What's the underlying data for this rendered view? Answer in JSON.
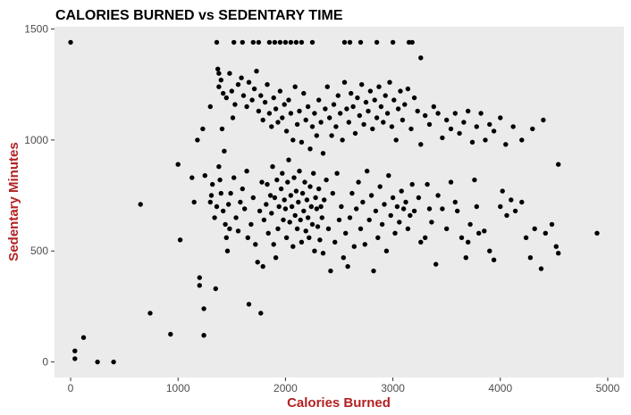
{
  "chart_data": {
    "type": "scatter",
    "title": "CALORIES BURNED vs SEDENTARY TIME",
    "xlabel": "Calories Burned",
    "ylabel": "Sedentary Minutes",
    "xlim": [
      -150,
      5150
    ],
    "ylim": [
      -70,
      1510
    ],
    "x_ticks": [
      0,
      1000,
      2000,
      3000,
      4000,
      5000
    ],
    "y_ticks": [
      0,
      500,
      1000,
      1500
    ],
    "grid": false,
    "colors": {
      "panel": "#ebebeb",
      "point": "#000000",
      "axis_title": "#b22222",
      "tick_label": "#4d4d4d"
    },
    "points": [
      [
        0,
        1440
      ],
      [
        40,
        50
      ],
      [
        40,
        15
      ],
      [
        120,
        110
      ],
      [
        250,
        0
      ],
      [
        400,
        0
      ],
      [
        650,
        710
      ],
      [
        740,
        220
      ],
      [
        930,
        125
      ],
      [
        1000,
        890
      ],
      [
        1020,
        550
      ],
      [
        1130,
        830
      ],
      [
        1150,
        720
      ],
      [
        1180,
        1000
      ],
      [
        1200,
        380
      ],
      [
        1200,
        345
      ],
      [
        1230,
        1050
      ],
      [
        1240,
        240
      ],
      [
        1240,
        120
      ],
      [
        1250,
        840
      ],
      [
        1300,
        720
      ],
      [
        1350,
        330
      ],
      [
        1360,
        1440
      ],
      [
        1370,
        1320
      ],
      [
        1380,
        1300
      ],
      [
        1400,
        1270
      ],
      [
        1410,
        1050
      ],
      [
        1430,
        950
      ],
      [
        1460,
        500
      ],
      [
        1480,
        600
      ],
      [
        1520,
        1440
      ],
      [
        1600,
        1440
      ],
      [
        1700,
        1440
      ],
      [
        1750,
        1440
      ],
      [
        1850,
        1440
      ],
      [
        1900,
        1440
      ],
      [
        1950,
        1440
      ],
      [
        2000,
        1440
      ],
      [
        2050,
        1440
      ],
      [
        2100,
        1440
      ],
      [
        2150,
        1440
      ],
      [
        2250,
        1440
      ],
      [
        2550,
        1440
      ],
      [
        2600,
        1440
      ],
      [
        2700,
        1440
      ],
      [
        2850,
        1440
      ],
      [
        3000,
        1440
      ],
      [
        3150,
        1440
      ],
      [
        3180,
        1440
      ],
      [
        3260,
        1370
      ],
      [
        1300,
        1150
      ],
      [
        1310,
        750
      ],
      [
        1320,
        800
      ],
      [
        1340,
        650
      ],
      [
        1360,
        700
      ],
      [
        1380,
        880
      ],
      [
        1390,
        820
      ],
      [
        1400,
        760
      ],
      [
        1420,
        680
      ],
      [
        1440,
        620
      ],
      [
        1450,
        560
      ],
      [
        1470,
        710
      ],
      [
        1490,
        760
      ],
      [
        1510,
        1100
      ],
      [
        1520,
        830
      ],
      [
        1540,
        650
      ],
      [
        1560,
        590
      ],
      [
        1580,
        720
      ],
      [
        1600,
        780
      ],
      [
        1620,
        690
      ],
      [
        1640,
        860
      ],
      [
        1650,
        560
      ],
      [
        1660,
        260
      ],
      [
        1680,
        620
      ],
      [
        1700,
        740
      ],
      [
        1720,
        530
      ],
      [
        1740,
        450
      ],
      [
        1760,
        680
      ],
      [
        1770,
        220
      ],
      [
        1780,
        810
      ],
      [
        1790,
        430
      ],
      [
        1800,
        640
      ],
      [
        1820,
        710
      ],
      [
        1830,
        800
      ],
      [
        1840,
        580
      ],
      [
        1860,
        750
      ],
      [
        1870,
        670
      ],
      [
        1880,
        880
      ],
      [
        1890,
        530
      ],
      [
        1900,
        740
      ],
      [
        1910,
        470
      ],
      [
        1920,
        820
      ],
      [
        1930,
        600
      ],
      [
        1940,
        700
      ],
      [
        1960,
        780
      ],
      [
        1970,
        850
      ],
      [
        1980,
        640
      ],
      [
        1990,
        730
      ],
      [
        2000,
        690
      ],
      [
        2010,
        560
      ],
      [
        2020,
        810
      ],
      [
        2030,
        910
      ],
      [
        2040,
        630
      ],
      [
        2050,
        750
      ],
      [
        2060,
        700
      ],
      [
        2070,
        520
      ],
      [
        2080,
        830
      ],
      [
        2090,
        660
      ],
      [
        2100,
        770
      ],
      [
        2110,
        600
      ],
      [
        2120,
        720
      ],
      [
        2130,
        860
      ],
      [
        2140,
        640
      ],
      [
        2150,
        540
      ],
      [
        2160,
        760
      ],
      [
        2170,
        680
      ],
      [
        2180,
        810
      ],
      [
        2190,
        590
      ],
      [
        2200,
        730
      ],
      [
        2210,
        650
      ],
      [
        2220,
        560
      ],
      [
        2230,
        790
      ],
      [
        2240,
        700
      ],
      [
        2250,
        620
      ],
      [
        2260,
        850
      ],
      [
        2270,
        500
      ],
      [
        2280,
        740
      ],
      [
        2290,
        690
      ],
      [
        2300,
        610
      ],
      [
        2310,
        780
      ],
      [
        2320,
        550
      ],
      [
        2330,
        700
      ],
      [
        2340,
        650
      ],
      [
        2350,
        490
      ],
      [
        2360,
        730
      ],
      [
        2380,
        820
      ],
      [
        2400,
        600
      ],
      [
        2420,
        410
      ],
      [
        2440,
        760
      ],
      [
        2460,
        540
      ],
      [
        2480,
        850
      ],
      [
        2500,
        640
      ],
      [
        2520,
        700
      ],
      [
        2540,
        470
      ],
      [
        2560,
        580
      ],
      [
        2580,
        430
      ],
      [
        2600,
        650
      ],
      [
        2620,
        760
      ],
      [
        2640,
        520
      ],
      [
        2660,
        690
      ],
      [
        2680,
        810
      ],
      [
        2700,
        600
      ],
      [
        2720,
        720
      ],
      [
        2740,
        530
      ],
      [
        2760,
        860
      ],
      [
        2780,
        640
      ],
      [
        2800,
        750
      ],
      [
        2820,
        410
      ],
      [
        2840,
        680
      ],
      [
        2860,
        560
      ],
      [
        2880,
        790
      ],
      [
        2900,
        620
      ],
      [
        2920,
        710
      ],
      [
        2940,
        500
      ],
      [
        2960,
        840
      ],
      [
        2980,
        660
      ],
      [
        3000,
        740
      ],
      [
        3020,
        580
      ],
      [
        3040,
        700
      ],
      [
        3060,
        630
      ],
      [
        3080,
        770
      ],
      [
        3100,
        690
      ],
      [
        3120,
        720
      ],
      [
        3140,
        600
      ],
      [
        3160,
        660
      ],
      [
        3180,
        800
      ],
      [
        3200,
        680
      ],
      [
        3240,
        740
      ],
      [
        3260,
        540
      ],
      [
        3300,
        560
      ],
      [
        3320,
        800
      ],
      [
        3340,
        690
      ],
      [
        3360,
        630
      ],
      [
        3400,
        440
      ],
      [
        3420,
        750
      ],
      [
        3460,
        690
      ],
      [
        3500,
        600
      ],
      [
        3540,
        810
      ],
      [
        3580,
        720
      ],
      [
        3600,
        680
      ],
      [
        3640,
        560
      ],
      [
        3680,
        470
      ],
      [
        3700,
        540
      ],
      [
        3720,
        620
      ],
      [
        3760,
        820
      ],
      [
        3780,
        700
      ],
      [
        3800,
        580
      ],
      [
        3850,
        590
      ],
      [
        3900,
        500
      ],
      [
        3940,
        460
      ],
      [
        4000,
        700
      ],
      [
        4020,
        770
      ],
      [
        4060,
        660
      ],
      [
        4100,
        730
      ],
      [
        4140,
        680
      ],
      [
        4200,
        720
      ],
      [
        4240,
        560
      ],
      [
        4280,
        470
      ],
      [
        4320,
        600
      ],
      [
        4380,
        420
      ],
      [
        4420,
        580
      ],
      [
        4480,
        620
      ],
      [
        4520,
        520
      ],
      [
        4540,
        490
      ],
      [
        4900,
        580
      ],
      [
        1380,
        1240
      ],
      [
        1420,
        1210
      ],
      [
        1450,
        1190
      ],
      [
        1480,
        1300
      ],
      [
        1500,
        1220
      ],
      [
        1530,
        1160
      ],
      [
        1560,
        1250
      ],
      [
        1590,
        1280
      ],
      [
        1610,
        1200
      ],
      [
        1640,
        1150
      ],
      [
        1660,
        1260
      ],
      [
        1690,
        1180
      ],
      [
        1710,
        1230
      ],
      [
        1730,
        1310
      ],
      [
        1750,
        1130
      ],
      [
        1770,
        1200
      ],
      [
        1790,
        1090
      ],
      [
        1810,
        1170
      ],
      [
        1830,
        1250
      ],
      [
        1850,
        1120
      ],
      [
        1870,
        1060
      ],
      [
        1890,
        1190
      ],
      [
        1910,
        1140
      ],
      [
        1930,
        1080
      ],
      [
        1950,
        1220
      ],
      [
        1970,
        1100
      ],
      [
        1990,
        1160
      ],
      [
        2010,
        1040
      ],
      [
        2030,
        1180
      ],
      [
        2050,
        1120
      ],
      [
        2070,
        1000
      ],
      [
        2090,
        1240
      ],
      [
        2110,
        1070
      ],
      [
        2130,
        1130
      ],
      [
        2150,
        990
      ],
      [
        2170,
        1210
      ],
      [
        2190,
        1090
      ],
      [
        2210,
        1150
      ],
      [
        2230,
        960
      ],
      [
        2250,
        1060
      ],
      [
        2270,
        1120
      ],
      [
        2290,
        1020
      ],
      [
        2310,
        1180
      ],
      [
        2330,
        1080
      ],
      [
        2350,
        940
      ],
      [
        2370,
        1140
      ],
      [
        2390,
        1240
      ],
      [
        2410,
        1100
      ],
      [
        2430,
        1020
      ],
      [
        2450,
        1160
      ],
      [
        2470,
        1060
      ],
      [
        2490,
        1200
      ],
      [
        2510,
        1120
      ],
      [
        2530,
        1000
      ],
      [
        2550,
        1260
      ],
      [
        2570,
        1140
      ],
      [
        2590,
        1080
      ],
      [
        2610,
        1210
      ],
      [
        2630,
        1150
      ],
      [
        2650,
        1030
      ],
      [
        2670,
        1190
      ],
      [
        2690,
        1110
      ],
      [
        2710,
        1250
      ],
      [
        2730,
        1070
      ],
      [
        2750,
        1170
      ],
      [
        2770,
        1130
      ],
      [
        2790,
        1220
      ],
      [
        2810,
        1050
      ],
      [
        2830,
        1180
      ],
      [
        2850,
        1100
      ],
      [
        2870,
        1240
      ],
      [
        2890,
        1150
      ],
      [
        2910,
        1080
      ],
      [
        2930,
        1200
      ],
      [
        2950,
        1120
      ],
      [
        2970,
        1260
      ],
      [
        2990,
        1060
      ],
      [
        3010,
        1180
      ],
      [
        3030,
        1000
      ],
      [
        3050,
        1140
      ],
      [
        3070,
        1220
      ],
      [
        3090,
        1090
      ],
      [
        3110,
        1160
      ],
      [
        3140,
        1230
      ],
      [
        3170,
        1050
      ],
      [
        3200,
        1190
      ],
      [
        3230,
        1130
      ],
      [
        3260,
        980
      ],
      [
        3300,
        1110
      ],
      [
        3340,
        1070
      ],
      [
        3380,
        1150
      ],
      [
        3420,
        1120
      ],
      [
        3460,
        1010
      ],
      [
        3500,
        1090
      ],
      [
        3540,
        1050
      ],
      [
        3580,
        1120
      ],
      [
        3620,
        1030
      ],
      [
        3660,
        1080
      ],
      [
        3700,
        1130
      ],
      [
        3740,
        990
      ],
      [
        3780,
        1060
      ],
      [
        3820,
        1120
      ],
      [
        3860,
        1000
      ],
      [
        3900,
        1070
      ],
      [
        3940,
        1040
      ],
      [
        4000,
        1100
      ],
      [
        4050,
        980
      ],
      [
        4120,
        1060
      ],
      [
        4200,
        1000
      ],
      [
        4300,
        1050
      ],
      [
        4400,
        1090
      ],
      [
        4540,
        890
      ]
    ]
  }
}
